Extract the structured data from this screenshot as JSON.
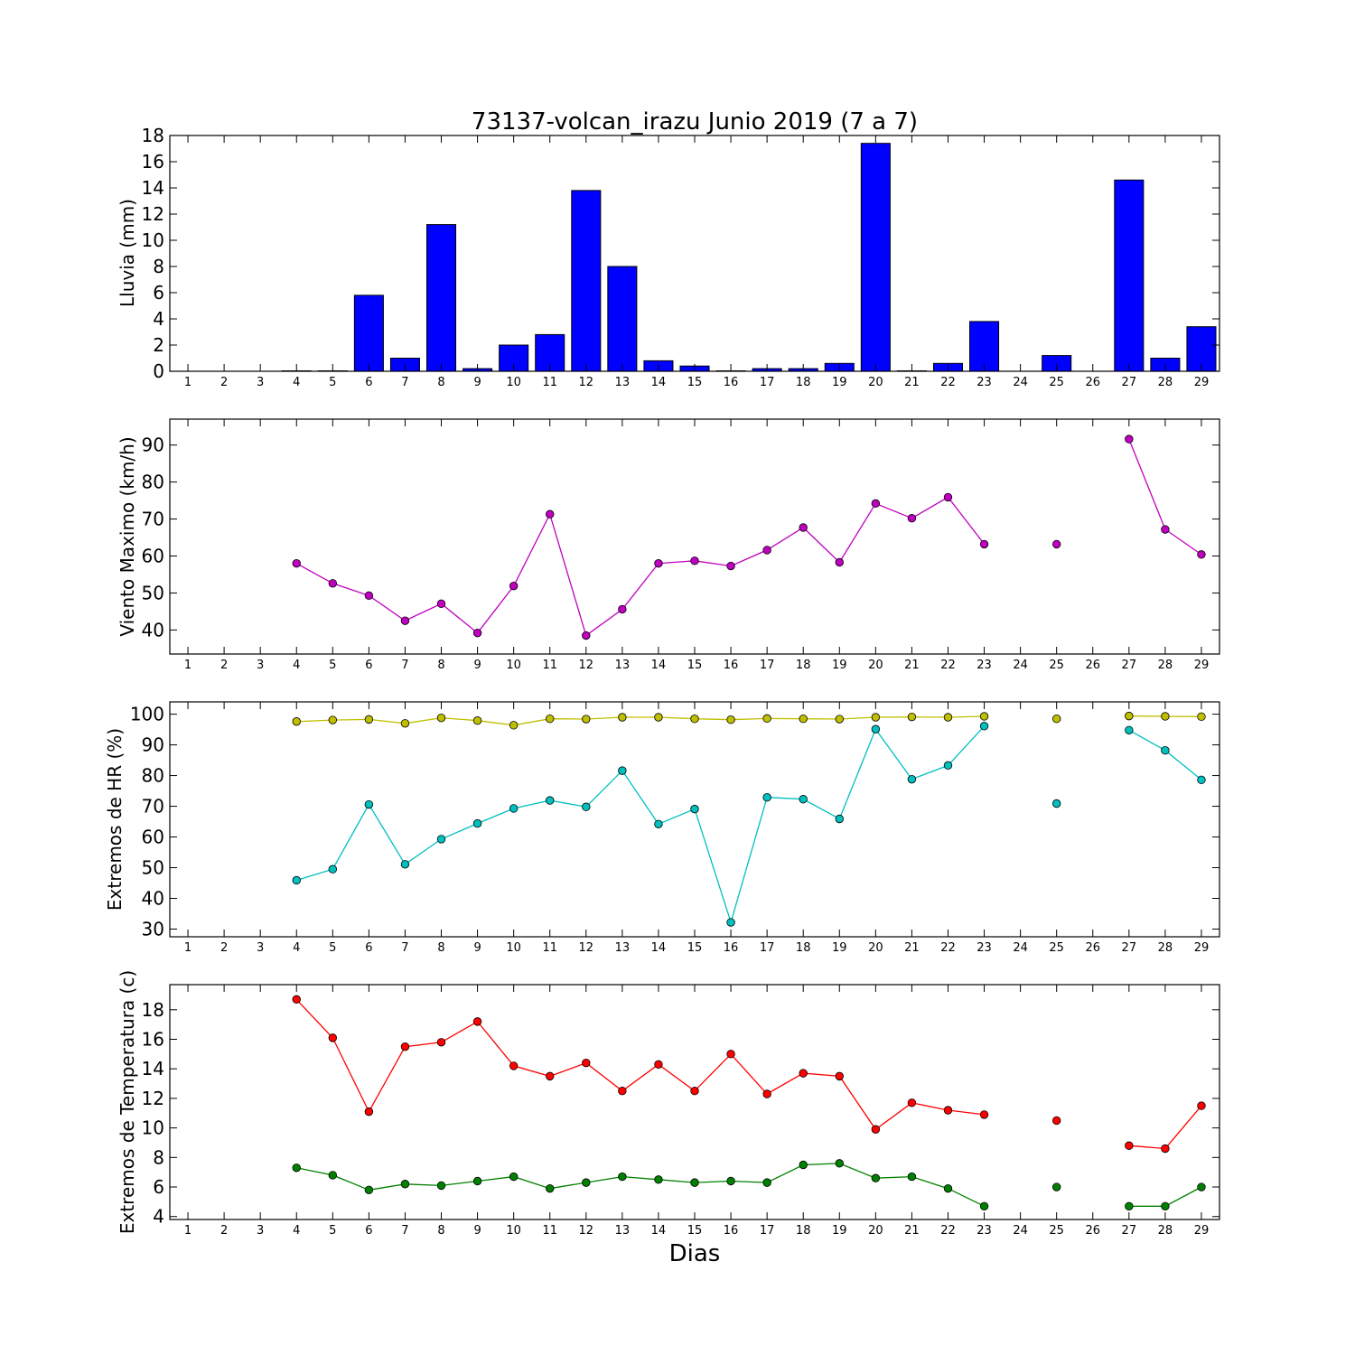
{
  "figure": {
    "title": "73137-volcan_irazu Junio 2019  (7 a 7)",
    "xlabel": "Dias"
  },
  "chart_data": [
    {
      "id": "lluvia",
      "type": "bar",
      "ylabel": "Lluvia (mm)",
      "ylim": [
        0,
        18
      ],
      "yticks": [
        0,
        2,
        4,
        6,
        8,
        10,
        12,
        14,
        16,
        18
      ],
      "categories": [
        1,
        2,
        3,
        4,
        5,
        6,
        7,
        8,
        9,
        10,
        11,
        12,
        13,
        14,
        15,
        16,
        17,
        18,
        19,
        20,
        21,
        22,
        23,
        24,
        25,
        26,
        27,
        28,
        29
      ],
      "xlim": [
        0.5,
        29.5
      ],
      "grid": false,
      "series": [
        {
          "color": "#0000ff",
          "x": [
            4,
            5,
            6,
            7,
            8,
            9,
            10,
            11,
            12,
            13,
            14,
            15,
            16,
            17,
            18,
            19,
            20,
            21,
            22,
            23,
            25,
            27,
            28,
            29
          ],
          "values": [
            0,
            0,
            5.8,
            1.0,
            11.2,
            0.2,
            2.0,
            2.8,
            13.8,
            8.0,
            0.8,
            0.4,
            0,
            0.2,
            0.2,
            0.6,
            17.4,
            0,
            0.6,
            3.8,
            1.2,
            14.6,
            1.0,
            3.4
          ]
        }
      ]
    },
    {
      "id": "viento",
      "type": "line",
      "ylabel": "Viento Maximo (km/h)",
      "ylim": [
        33.5,
        97
      ],
      "yticks": [
        40,
        50,
        60,
        70,
        80,
        90
      ],
      "categories": [
        1,
        2,
        3,
        4,
        5,
        6,
        7,
        8,
        9,
        10,
        11,
        12,
        13,
        14,
        15,
        16,
        17,
        18,
        19,
        20,
        21,
        22,
        23,
        24,
        25,
        26,
        27,
        28,
        29
      ],
      "xlim": [
        0.5,
        29.5
      ],
      "grid": false,
      "series": [
        {
          "color": "#bf00bf",
          "x": [
            4,
            5,
            6,
            7,
            8,
            9,
            10,
            11,
            12,
            13,
            14,
            15,
            16,
            17,
            18,
            19,
            20,
            21,
            22,
            23,
            24,
            25,
            26,
            27,
            28,
            29
          ],
          "values": [
            58.0,
            52.6,
            49.3,
            42.5,
            47.1,
            39.2,
            51.9,
            71.3,
            38.5,
            45.6,
            58.0,
            58.7,
            57.3,
            61.6,
            67.7,
            58.3,
            74.2,
            70.2,
            75.9,
            63.2,
            null,
            63.2,
            null,
            91.6,
            67.2,
            60.4
          ]
        }
      ]
    },
    {
      "id": "hr",
      "type": "line",
      "ylabel": "Extremos de HR (%)",
      "ylim": [
        27.5,
        104
      ],
      "yticks": [
        30,
        40,
        50,
        60,
        70,
        80,
        90,
        100
      ],
      "categories": [
        1,
        2,
        3,
        4,
        5,
        6,
        7,
        8,
        9,
        10,
        11,
        12,
        13,
        14,
        15,
        16,
        17,
        18,
        19,
        20,
        21,
        22,
        23,
        24,
        25,
        26,
        27,
        28,
        29
      ],
      "xlim": [
        0.5,
        29.5
      ],
      "grid": false,
      "series": [
        {
          "color": "#bfbf00",
          "x": [
            4,
            5,
            6,
            7,
            8,
            9,
            10,
            11,
            12,
            13,
            14,
            15,
            16,
            17,
            18,
            19,
            20,
            21,
            22,
            23,
            24,
            25,
            26,
            27,
            28,
            29
          ],
          "values": [
            97.6,
            98.1,
            98.3,
            97.0,
            98.8,
            97.9,
            96.4,
            98.5,
            98.4,
            99.0,
            99.0,
            98.5,
            98.2,
            98.6,
            98.5,
            98.4,
            99.0,
            99.1,
            99.0,
            99.3,
            null,
            98.5,
            null,
            99.4,
            99.3,
            99.2
          ]
        },
        {
          "color": "#00bfbf",
          "x": [
            4,
            5,
            6,
            7,
            8,
            9,
            10,
            11,
            12,
            13,
            14,
            15,
            16,
            17,
            18,
            19,
            20,
            21,
            22,
            23,
            24,
            25,
            26,
            27,
            28,
            29
          ],
          "values": [
            45.9,
            49.5,
            70.6,
            51.1,
            59.3,
            64.4,
            69.3,
            71.9,
            69.8,
            81.6,
            64.2,
            69.1,
            32.2,
            72.9,
            72.3,
            65.9,
            95.1,
            78.8,
            83.3,
            96.1,
            null,
            70.9,
            null,
            94.8,
            88.2,
            78.6
          ]
        }
      ]
    },
    {
      "id": "temperatura",
      "type": "line",
      "ylabel": "Extremos de Temperatura (c)",
      "ylim": [
        3.8,
        19.7
      ],
      "yticks": [
        4,
        6,
        8,
        10,
        12,
        14,
        16,
        18
      ],
      "categories": [
        1,
        2,
        3,
        4,
        5,
        6,
        7,
        8,
        9,
        10,
        11,
        12,
        13,
        14,
        15,
        16,
        17,
        18,
        19,
        20,
        21,
        22,
        23,
        24,
        25,
        26,
        27,
        28,
        29
      ],
      "xlim": [
        0.5,
        29.5
      ],
      "grid": false,
      "series": [
        {
          "color": "#ff0000",
          "x": [
            4,
            5,
            6,
            7,
            8,
            9,
            10,
            11,
            12,
            13,
            14,
            15,
            16,
            17,
            18,
            19,
            20,
            21,
            22,
            23,
            24,
            25,
            26,
            27,
            28,
            29
          ],
          "values": [
            18.7,
            16.1,
            11.1,
            15.5,
            15.8,
            17.2,
            14.2,
            13.5,
            14.4,
            12.5,
            14.3,
            12.5,
            15.0,
            12.3,
            13.7,
            13.5,
            9.9,
            11.7,
            11.2,
            10.9,
            null,
            10.5,
            null,
            8.8,
            8.6,
            11.5
          ]
        },
        {
          "color": "#008000",
          "x": [
            4,
            5,
            6,
            7,
            8,
            9,
            10,
            11,
            12,
            13,
            14,
            15,
            16,
            17,
            18,
            19,
            20,
            21,
            22,
            23,
            24,
            25,
            26,
            27,
            28,
            29
          ],
          "values": [
            7.3,
            6.8,
            5.8,
            6.2,
            6.1,
            6.4,
            6.7,
            5.9,
            6.3,
            6.7,
            6.5,
            6.3,
            6.4,
            6.3,
            7.5,
            7.6,
            6.6,
            6.7,
            5.9,
            4.7,
            null,
            6.0,
            null,
            4.7,
            4.7,
            6.0
          ]
        }
      ]
    }
  ]
}
